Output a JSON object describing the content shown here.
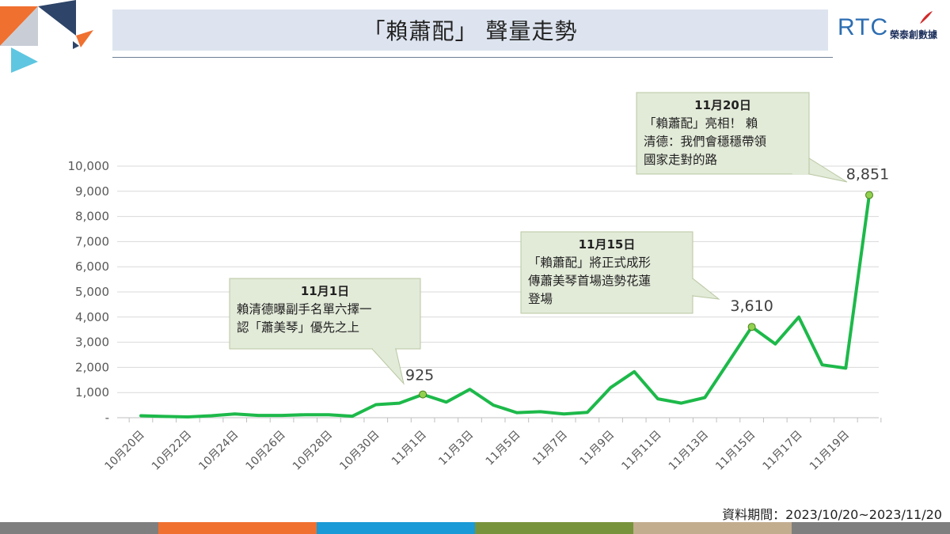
{
  "header": {
    "title": "「賴蕭配」 聲量走勢"
  },
  "logo": {
    "brand": "RTC",
    "name": "榮泰創數據"
  },
  "footer": {
    "source_note": "資料期間：2023/10/20~2023/11/20"
  },
  "colors": {
    "line": "#1db94a",
    "marker": "#92d050",
    "callout_fill": "#e2ead8",
    "callout_border": "#b9c7a2",
    "title_bg": "#dde4ef",
    "bottom_bar": [
      "#7f7f7f",
      "#f07030",
      "#1a9ad6",
      "#77933c",
      "#c2ad8f",
      "#7f7f7f"
    ]
  },
  "chart_data": {
    "type": "line",
    "x": [
      "10月20日",
      "10月21日",
      "10月22日",
      "10月23日",
      "10月24日",
      "10月25日",
      "10月26日",
      "10月27日",
      "10月28日",
      "10月29日",
      "10月30日",
      "10月31日",
      "11月1日",
      "11月2日",
      "11月3日",
      "11月4日",
      "11月5日",
      "11月6日",
      "11月7日",
      "11月8日",
      "11月9日",
      "11月10日",
      "11月11日",
      "11月12日",
      "11月13日",
      "11月14日",
      "11月15日",
      "11月16日",
      "11月17日",
      "11月18日",
      "11月19日",
      "11月20日"
    ],
    "tick_labels": [
      "10月20日",
      "10月22日",
      "10月24日",
      "10月26日",
      "10月28日",
      "10月30日",
      "11月1日",
      "11月3日",
      "11月5日",
      "11月7日",
      "11月9日",
      "11月11日",
      "11月13日",
      "11月15日",
      "11月17日",
      "11月19日"
    ],
    "series": [
      {
        "values": [
          80,
          50,
          30,
          80,
          150,
          90,
          90,
          120,
          120,
          60,
          520,
          580,
          925,
          620,
          1130,
          500,
          200,
          240,
          150,
          210,
          1200,
          1830,
          750,
          580,
          800,
          2200,
          3610,
          2930,
          4000,
          2100,
          1970,
          8851
        ]
      }
    ],
    "ylim": [
      0,
      10000
    ],
    "yticks": [
      0,
      1000,
      2000,
      3000,
      4000,
      5000,
      6000,
      7000,
      8000,
      9000,
      10000
    ],
    "ytick_labels": [
      "-",
      "1,000",
      "2,000",
      "3,000",
      "4,000",
      "5,000",
      "6,000",
      "7,000",
      "8,000",
      "9,000",
      "10,000"
    ],
    "grid": true,
    "data_labels": [
      {
        "index": 12,
        "text": "925"
      },
      {
        "index": 26,
        "text": "3,610"
      },
      {
        "index": 31,
        "text": "8,851"
      }
    ],
    "annotations": [
      {
        "index": 12,
        "title": "11月1日",
        "lines": [
          "賴清德曝副手名單六擇一",
          "認「蕭美琴」優先之上"
        ]
      },
      {
        "index": 26,
        "title": "11月15日",
        "lines": [
          "「賴蕭配」將正式成形",
          "傳蕭美琴首場造勢花蓮",
          "登場"
        ]
      },
      {
        "index": 31,
        "title": "11月20日",
        "lines": [
          "「賴蕭配」亮相！ 賴",
          "清德：我們會穩穩帶領",
          "國家走對的路"
        ]
      }
    ]
  }
}
